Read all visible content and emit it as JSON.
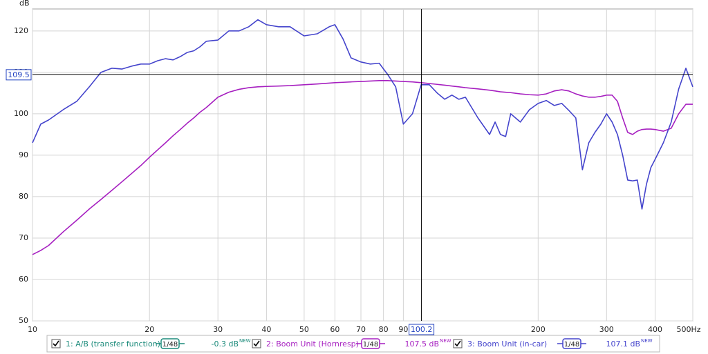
{
  "chart_data": {
    "type": "line",
    "y_label": "dB",
    "x": [
      10,
      10.5,
      11,
      12,
      13,
      14,
      15,
      16,
      17,
      18,
      19,
      20,
      21,
      22,
      23,
      24,
      25,
      26,
      27,
      28,
      30,
      32,
      34,
      36,
      38,
      40,
      43,
      46,
      50,
      54,
      58,
      60,
      63,
      66,
      70,
      74,
      78,
      82,
      86,
      90,
      95,
      100,
      105,
      110,
      115,
      120,
      125,
      130,
      140,
      150,
      155,
      160,
      165,
      170,
      180,
      190,
      200,
      210,
      220,
      230,
      240,
      250,
      260,
      270,
      280,
      290,
      300,
      310,
      320,
      330,
      340,
      350,
      360,
      370,
      380,
      390,
      400,
      420,
      440,
      460,
      480,
      500
    ],
    "series": [
      {
        "name": "1: A/B (transfer function)",
        "color": "#1a8a7a",
        "smoothing": "1/48",
        "readout": "-0.3 dB",
        "badge": "NEW"
      },
      {
        "name": "2: Boom Unit (Hornresp)",
        "color": "#a61fc0",
        "smoothing": "1/48",
        "readout": "107.5 dB",
        "badge": "NEW",
        "values": [
          66,
          67,
          68.2,
          71.5,
          74.3,
          77,
          79.3,
          81.5,
          83.6,
          85.6,
          87.5,
          89.5,
          91.3,
          93,
          94.7,
          96.2,
          97.7,
          99,
          100.4,
          101.5,
          104,
          105.2,
          105.9,
          106.3,
          106.5,
          106.6,
          106.7,
          106.8,
          107,
          107.2,
          107.4,
          107.5,
          107.6,
          107.7,
          107.8,
          107.9,
          108,
          108,
          107.9,
          107.8,
          107.7,
          107.5,
          107.3,
          107.1,
          106.9,
          106.7,
          106.5,
          106.3,
          106,
          105.7,
          105.5,
          105.3,
          105.2,
          105.1,
          104.8,
          104.6,
          104.5,
          104.8,
          105.5,
          105.8,
          105.5,
          104.8,
          104.3,
          104,
          104,
          104.2,
          104.5,
          104.5,
          103,
          99,
          95.5,
          95,
          95.8,
          96.2,
          96.3,
          96.3,
          96.2,
          95.8,
          96.5,
          100,
          102.3,
          102.3
        ]
      },
      {
        "name": "3: Boom Unit (in-car)",
        "color": "#4444cc",
        "smoothing": "1/48",
        "readout": "107.1 dB",
        "badge": "NEW",
        "values": [
          93,
          97.5,
          98.5,
          101,
          103,
          106.5,
          110,
          111,
          110.8,
          111.5,
          112,
          112,
          112.8,
          113.3,
          113,
          113.8,
          114.8,
          115.2,
          116.2,
          117.5,
          117.8,
          120,
          120,
          121,
          122.7,
          121.5,
          121,
          121,
          118.8,
          119.3,
          121,
          121.5,
          118,
          113.5,
          112.5,
          112,
          112.2,
          109.5,
          106.5,
          97.5,
          100,
          107,
          107,
          105,
          103.5,
          104.5,
          103.5,
          104,
          99,
          95,
          98,
          95,
          94.5,
          100,
          98,
          101,
          102.5,
          103.2,
          102,
          102.5,
          100.8,
          99,
          86.5,
          93,
          95.5,
          97.5,
          100,
          98,
          95,
          90,
          84,
          83.8,
          84,
          77,
          83,
          87,
          89,
          93,
          98,
          106,
          111,
          106.5
        ]
      }
    ],
    "xlim": [
      10,
      500
    ],
    "ylim": [
      50,
      125.3
    ],
    "log_x": true,
    "grid": true,
    "xticks": [
      10,
      20,
      30,
      40,
      50,
      60,
      70,
      80,
      90,
      100,
      200,
      300,
      400,
      {
        "value": 500,
        "label": "500Hz"
      }
    ],
    "yticks": [
      50,
      60,
      70,
      80,
      90,
      100,
      110,
      120
    ],
    "cursor": {
      "x": 100.2,
      "y": 109.5
    }
  }
}
